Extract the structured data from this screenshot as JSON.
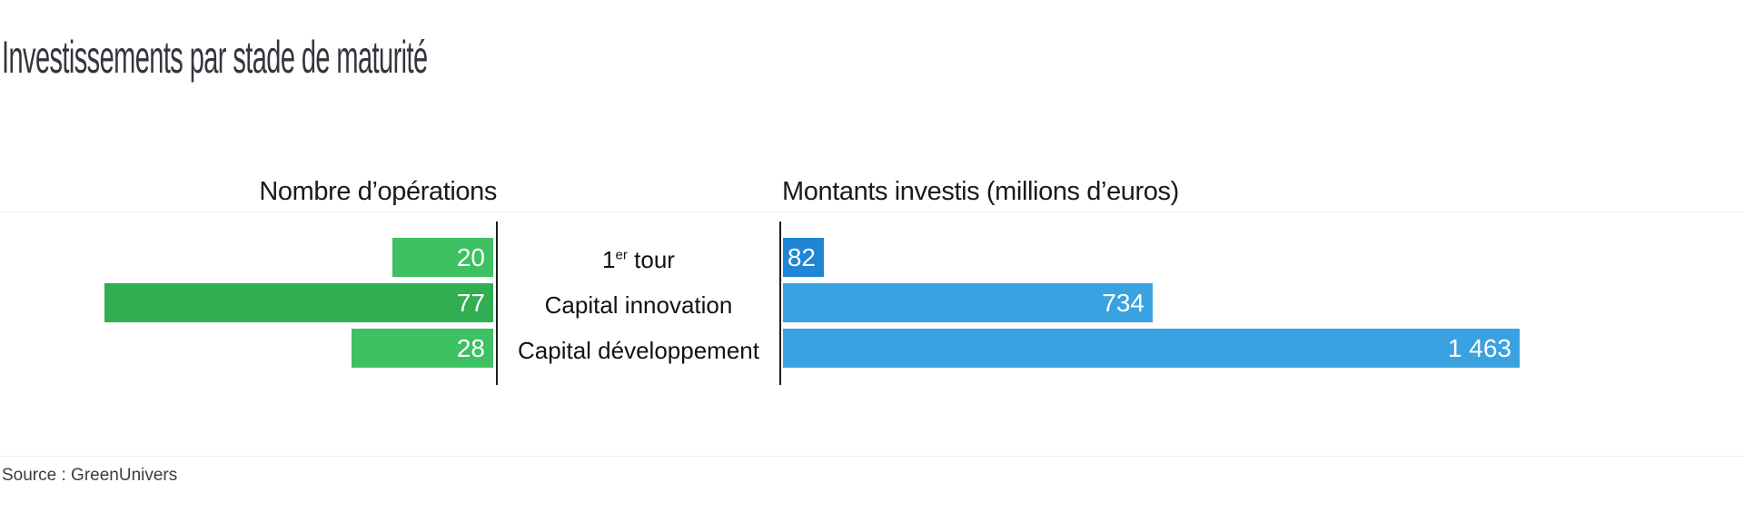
{
  "title": "Investissements par stade de maturité",
  "panels": {
    "left": {
      "header": "Nombre d’opérations"
    },
    "right": {
      "header": "Montants investis (millions d’euros)"
    }
  },
  "rows": [
    {
      "category": "1er tour",
      "category_parts": {
        "base": "1",
        "sup": "er",
        "rest": " tour"
      },
      "operations": {
        "value": 20,
        "label": "20",
        "color": "#3dc163"
      },
      "amount": {
        "value": 82,
        "label": "82",
        "color": "#1e86d4"
      }
    },
    {
      "category": "Capital innovation",
      "category_parts": {
        "base": "Capital innovation",
        "sup": "",
        "rest": ""
      },
      "operations": {
        "value": 77,
        "label": "77",
        "color": "#2fae52"
      },
      "amount": {
        "value": 734,
        "label": "734",
        "color": "#3aa2e0"
      }
    },
    {
      "category": "Capital développement",
      "category_parts": {
        "base": "Capital développement",
        "sup": "",
        "rest": ""
      },
      "operations": {
        "value": 28,
        "label": "28",
        "color": "#3dc163"
      },
      "amount": {
        "value": 1463,
        "label": "1 463",
        "color": "#3aa2e0"
      }
    }
  ],
  "source": "Source : GreenUnivers",
  "chart_data": {
    "type": "bar",
    "orientation": "horizontal",
    "layout": "dual-panel back-to-back",
    "title": "Investissements par stade de maturité",
    "categories": [
      "1er tour",
      "Capital innovation",
      "Capital développement"
    ],
    "series": [
      {
        "name": "Nombre d’opérations",
        "panel": "left",
        "direction": "left",
        "values": [
          20,
          77,
          28
        ],
        "value_labels": [
          "20",
          "77",
          "28"
        ],
        "bar_colors": [
          "#3dc163",
          "#2fae52",
          "#3dc163"
        ]
      },
      {
        "name": "Montants investis (millions d’euros)",
        "panel": "right",
        "direction": "right",
        "values": [
          82,
          734,
          1463
        ],
        "value_labels": [
          "82",
          "734",
          "1 463"
        ],
        "bar_colors": [
          "#1e86d4",
          "#3aa2e0",
          "#3aa2e0"
        ]
      }
    ],
    "value_label_position": "inside-end",
    "grid": "off",
    "legend": "none",
    "source": "Source : GreenUnivers"
  }
}
